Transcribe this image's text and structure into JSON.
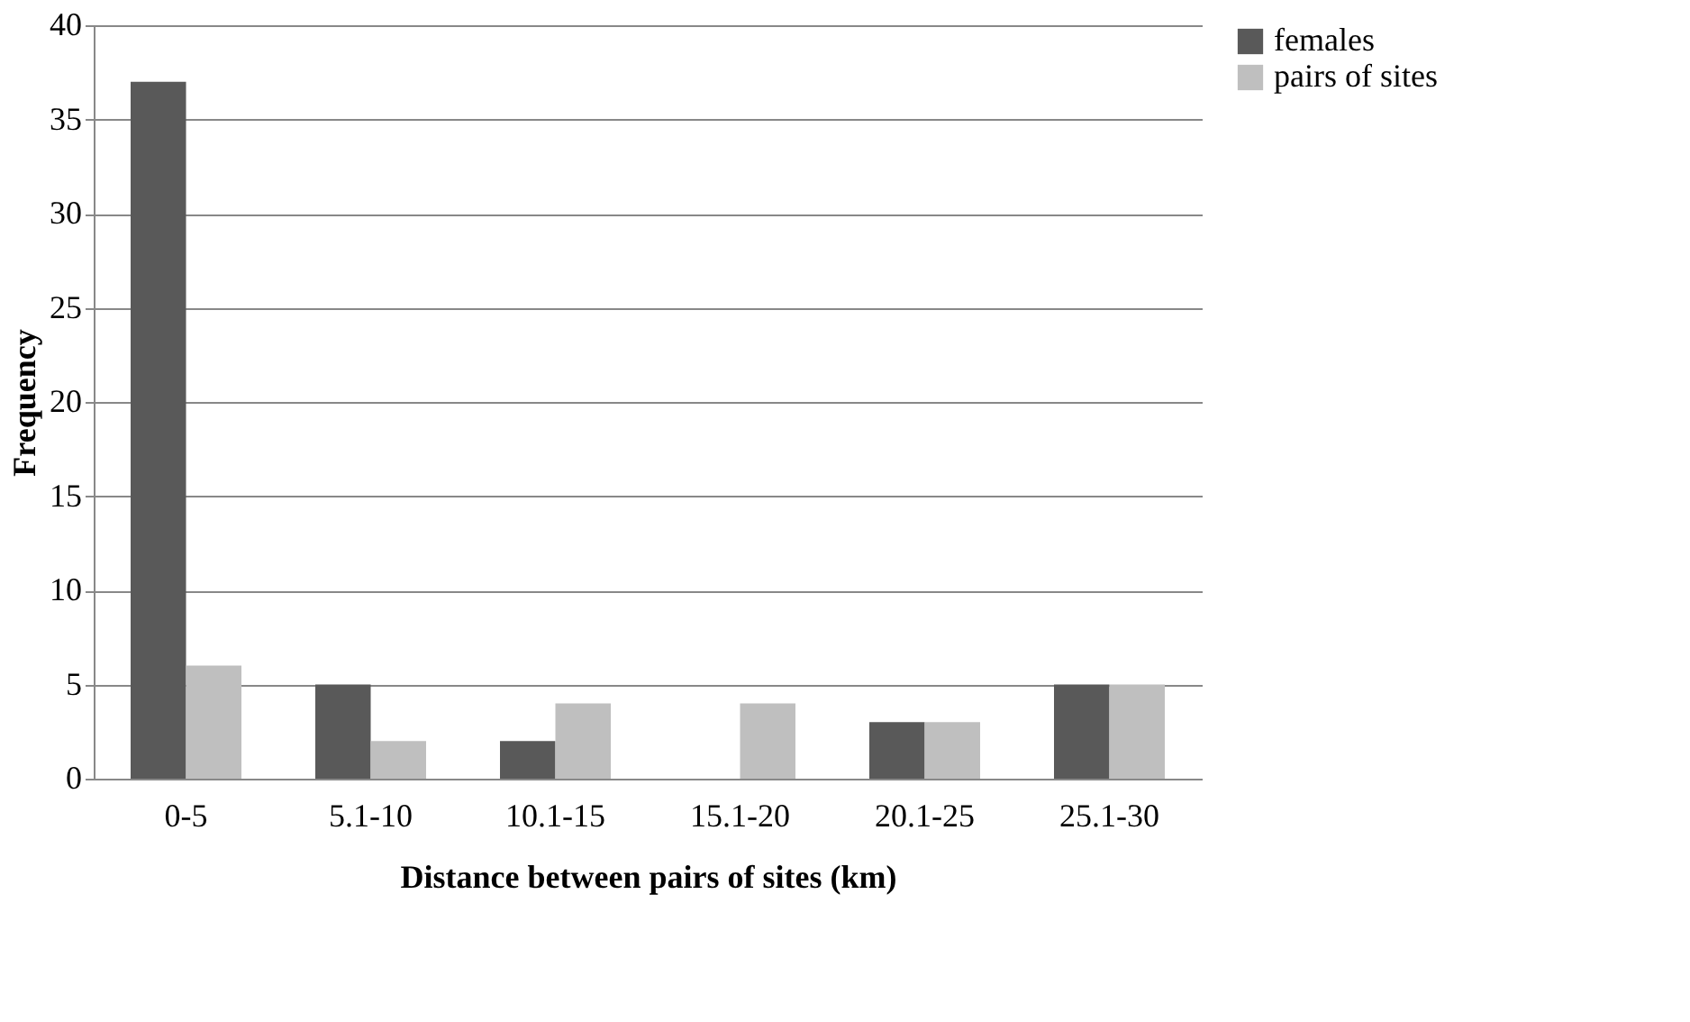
{
  "chart_data": {
    "type": "bar",
    "xlabel": "Distance between pairs of sites (km)",
    "ylabel": "Frequency",
    "categories": [
      "0-5",
      "5.1-10",
      "10.1-15",
      "15.1-20",
      "20.1-25",
      "25.1-30"
    ],
    "series": [
      {
        "name": "females",
        "color": "#595959",
        "values": [
          37,
          5,
          2,
          0,
          3,
          5
        ]
      },
      {
        "name": "pairs of sites",
        "color": "#bfbfbf",
        "values": [
          6,
          2,
          4,
          4,
          3,
          5
        ]
      }
    ],
    "ylim": [
      0,
      40
    ],
    "yticks": [
      0,
      5,
      10,
      15,
      20,
      25,
      30,
      35,
      40
    ],
    "grid": "y",
    "legend": "right"
  }
}
